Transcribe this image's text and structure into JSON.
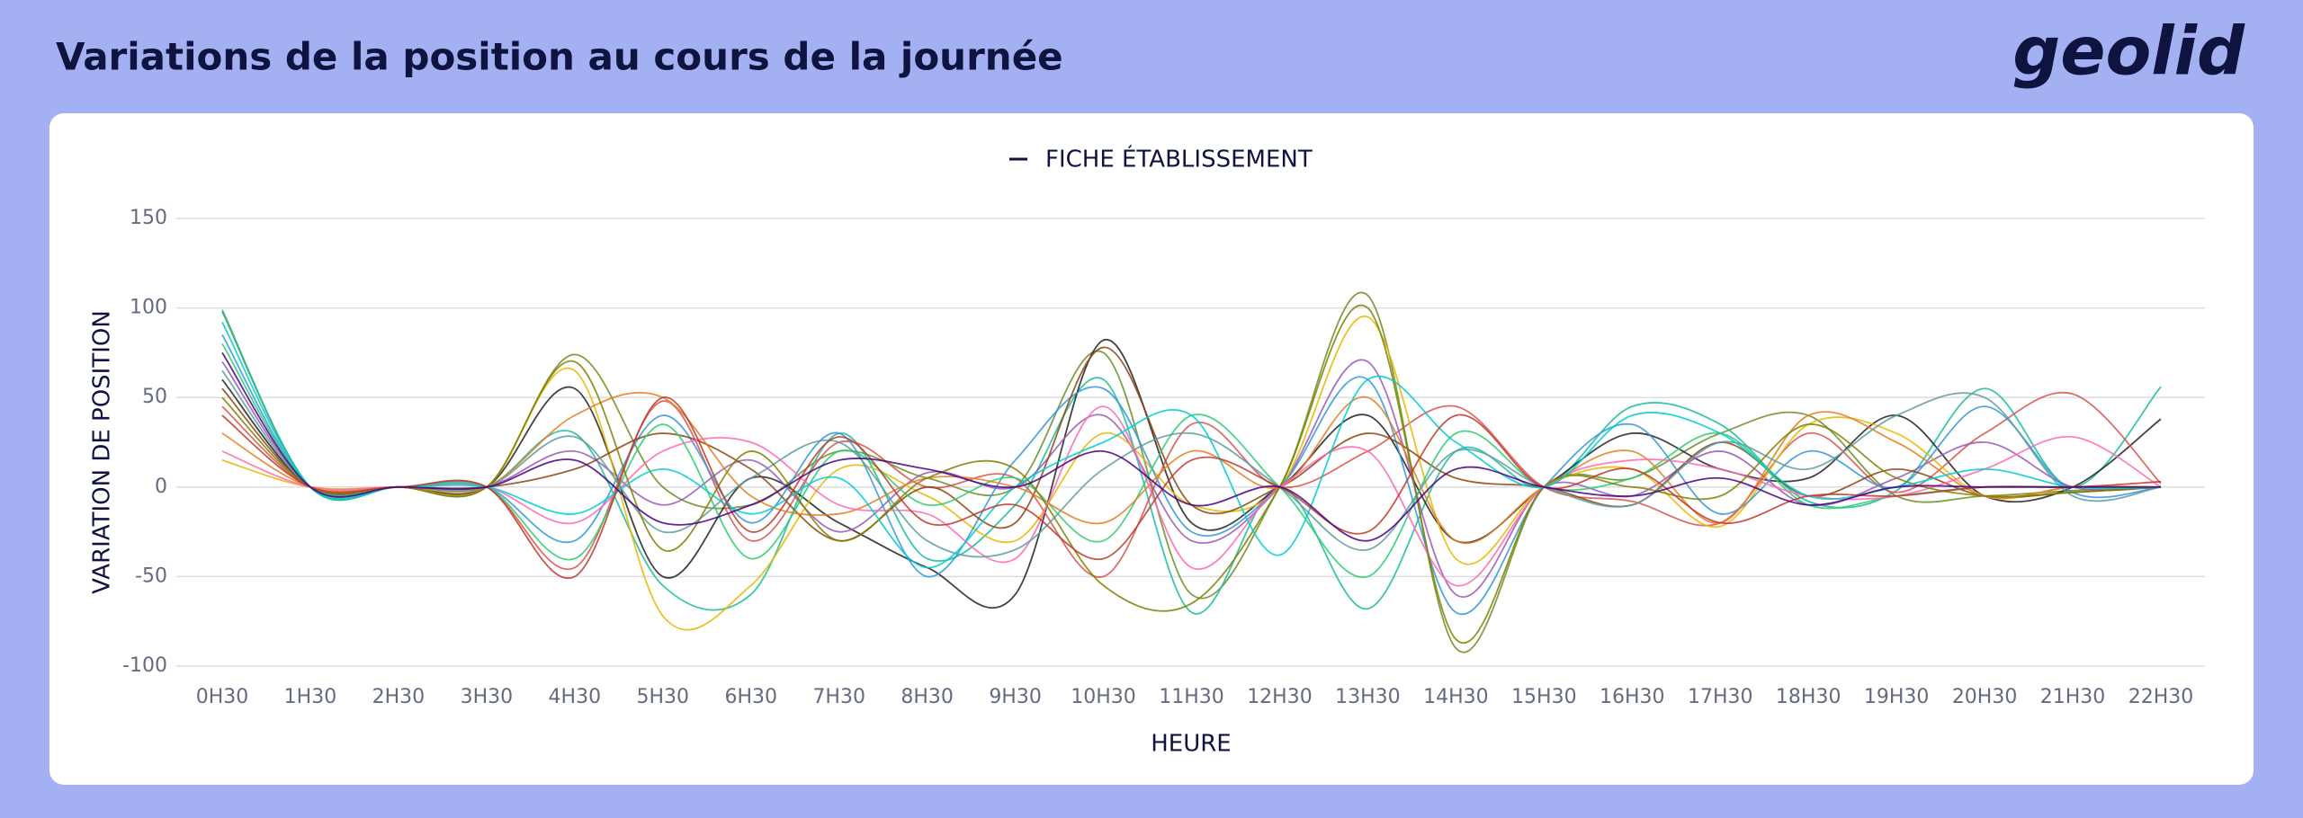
{
  "chart_data": {
    "type": "line",
    "title": "Variations de la position au cours de la journée",
    "logo": "geolid",
    "legend_label": "FICHE ÉTABLISSEMENT",
    "x_label": "HEURE",
    "y_label": "VARIATION DE POSITION",
    "categories": [
      "0H30",
      "1H30",
      "2H30",
      "3H30",
      "4H30",
      "5H30",
      "6H30",
      "7H30",
      "8H30",
      "9H30",
      "10H30",
      "11H30",
      "12H30",
      "13H30",
      "14H30",
      "15H30",
      "16H30",
      "17H30",
      "18H30",
      "19H30",
      "20H30",
      "21H30",
      "22H30"
    ],
    "ylim": [
      -100,
      150
    ],
    "yticks": [
      -100,
      -50,
      0,
      50,
      100,
      150
    ],
    "grid": true,
    "series": [
      {
        "color": "#6b8e23",
        "values": [
          98,
          0,
          0,
          0,
          74,
          0,
          -10,
          20,
          5,
          0,
          75,
          -60,
          0,
          107,
          -90,
          0,
          5,
          30,
          40,
          -5,
          -5,
          -2,
          0
        ]
      },
      {
        "color": "#1abc9c",
        "values": [
          99,
          0,
          0,
          0,
          30,
          -55,
          -60,
          30,
          -40,
          -10,
          60,
          -70,
          0,
          -68,
          20,
          0,
          45,
          35,
          -8,
          -2,
          55,
          0,
          56
        ]
      },
      {
        "color": "#222222",
        "values": [
          60,
          0,
          0,
          0,
          55,
          -50,
          5,
          -20,
          -45,
          -60,
          82,
          -20,
          0,
          40,
          -30,
          0,
          30,
          10,
          5,
          40,
          -5,
          0,
          38
        ]
      },
      {
        "color": "#d9534f",
        "values": [
          45,
          0,
          0,
          0,
          -45,
          48,
          -30,
          25,
          0,
          5,
          -50,
          35,
          0,
          20,
          45,
          0,
          -8,
          -20,
          30,
          -3,
          30,
          52,
          2
        ]
      },
      {
        "color": "#9b59b6",
        "values": [
          70,
          0,
          0,
          0,
          20,
          -10,
          15,
          -25,
          8,
          0,
          40,
          -30,
          0,
          70,
          -60,
          0,
          -5,
          20,
          -10,
          5,
          25,
          0,
          0
        ]
      },
      {
        "color": "#e6b800",
        "values": [
          15,
          0,
          0,
          0,
          65,
          -72,
          -55,
          10,
          -5,
          -30,
          30,
          -10,
          0,
          95,
          -40,
          0,
          10,
          -22,
          35,
          30,
          -5,
          0,
          0
        ]
      },
      {
        "color": "#3498db",
        "values": [
          85,
          0,
          0,
          0,
          -30,
          40,
          -20,
          30,
          -50,
          15,
          55,
          -25,
          0,
          60,
          -70,
          0,
          35,
          -15,
          20,
          0,
          45,
          -3,
          0
        ]
      },
      {
        "color": "#8b4513",
        "values": [
          55,
          0,
          0,
          0,
          10,
          30,
          10,
          -30,
          0,
          -20,
          78,
          -10,
          0,
          30,
          5,
          0,
          -10,
          25,
          -5,
          10,
          -5,
          -3,
          0
        ]
      },
      {
        "color": "#2ecc71",
        "values": [
          80,
          0,
          0,
          0,
          -40,
          35,
          -40,
          20,
          -10,
          5,
          -30,
          40,
          0,
          -50,
          30,
          0,
          5,
          30,
          -10,
          -5,
          0,
          0,
          0
        ]
      },
      {
        "color": "#e67e22",
        "values": [
          30,
          0,
          0,
          0,
          40,
          50,
          -5,
          -15,
          5,
          0,
          -20,
          20,
          0,
          50,
          -30,
          0,
          20,
          -20,
          40,
          25,
          -5,
          0,
          0
        ]
      },
      {
        "color": "#ff69b4",
        "values": [
          20,
          0,
          0,
          0,
          -20,
          20,
          25,
          -10,
          -15,
          -40,
          45,
          -45,
          0,
          20,
          -55,
          0,
          15,
          10,
          -5,
          -5,
          10,
          28,
          0
        ]
      },
      {
        "color": "#5f9ea0",
        "values": [
          65,
          0,
          0,
          0,
          28,
          -25,
          5,
          25,
          -30,
          -35,
          10,
          30,
          0,
          -35,
          20,
          0,
          -10,
          25,
          10,
          40,
          50,
          -5,
          0
        ]
      },
      {
        "color": "#808000",
        "values": [
          50,
          0,
          0,
          0,
          70,
          -35,
          20,
          -30,
          5,
          10,
          -55,
          -65,
          0,
          100,
          -85,
          0,
          0,
          -5,
          35,
          5,
          -5,
          -3,
          0
        ]
      },
      {
        "color": "#00ced1",
        "values": [
          92,
          0,
          0,
          0,
          -15,
          10,
          -15,
          5,
          -45,
          0,
          25,
          40,
          -38,
          60,
          25,
          0,
          40,
          30,
          -5,
          0,
          10,
          0,
          0
        ]
      },
      {
        "color": "#c0392b",
        "values": [
          40,
          0,
          0,
          0,
          -50,
          50,
          -25,
          28,
          -20,
          -10,
          -40,
          15,
          0,
          -25,
          40,
          0,
          10,
          -20,
          -5,
          -5,
          0,
          0,
          3
        ]
      },
      {
        "color": "#4b0082",
        "values": [
          75,
          0,
          0,
          0,
          15,
          -20,
          -10,
          15,
          10,
          0,
          20,
          -10,
          0,
          -30,
          10,
          0,
          -5,
          5,
          -10,
          0,
          0,
          0,
          0
        ]
      }
    ]
  }
}
